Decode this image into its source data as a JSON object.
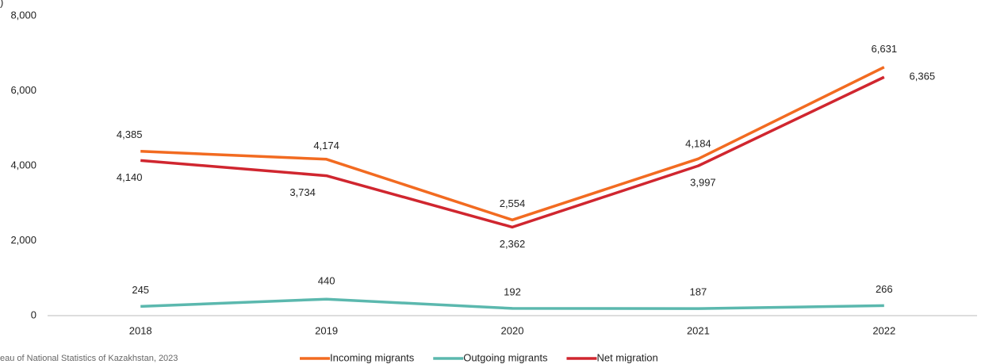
{
  "chart_data": {
    "type": "line",
    "y_label": ")",
    "source": "eau of National Statistics of Kazakhstan, 2023",
    "categories": [
      "2018",
      "2019",
      "2020",
      "2021",
      "2022"
    ],
    "series": [
      {
        "name": "Incoming migrants",
        "color": "#f26b21",
        "values": [
          4385,
          4174,
          2554,
          4184,
          6631
        ],
        "value_labels": [
          "4,385",
          "4,174",
          "2,554",
          "4,184",
          "6,631"
        ]
      },
      {
        "name": "Outgoing migrants",
        "color": "#5bb8ae",
        "values": [
          245,
          440,
          192,
          187,
          266
        ]
      },
      {
        "name": "Net migration",
        "color": "#d0262f",
        "values": [
          4140,
          3734,
          2362,
          3997,
          6365
        ],
        "value_labels": [
          "4,140",
          "3,734",
          "2,362",
          "3,997",
          "6,365"
        ]
      }
    ],
    "ylim": [
      0,
      8000
    ],
    "yticks": [
      0,
      {
        "value": 2000,
        "label": "2,000"
      },
      {
        "value": 4000,
        "label": "4,000"
      },
      {
        "value": 6000,
        "label": "6,000"
      },
      {
        "value": 8000,
        "label": "8,000"
      }
    ],
    "grid": false,
    "legend": "bottom"
  }
}
